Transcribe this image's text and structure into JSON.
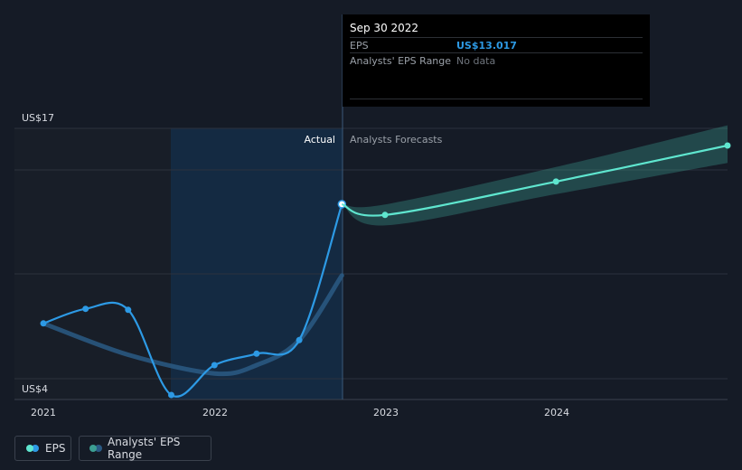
{
  "chart_data": {
    "type": "line",
    "x_ticks": [
      "2021",
      "2022",
      "2023",
      "2024"
    ],
    "y_labels": [
      "US$17",
      "US$4"
    ],
    "ylim": [
      4,
      17
    ],
    "series": [
      {
        "name": "EPS",
        "kind": "actual",
        "color": "#2d9ae5",
        "points": [
          {
            "x": "2021-01-01",
            "y": 7.3
          },
          {
            "x": "2021-04-01",
            "y": 8.0
          },
          {
            "x": "2021-07-01",
            "y": 7.95
          },
          {
            "x": "2021-10-01",
            "y": 3.87
          },
          {
            "x": "2022-01-01",
            "y": 5.3
          },
          {
            "x": "2022-04-01",
            "y": 5.85
          },
          {
            "x": "2022-07-01",
            "y": 6.5
          },
          {
            "x": "2022-09-30",
            "y": 13.017
          }
        ]
      },
      {
        "name": "EPS",
        "kind": "forecast",
        "color": "#5fe6cf",
        "points": [
          {
            "x": "2022-09-30",
            "y": 13.017
          },
          {
            "x": "2022-12-31",
            "y": 12.5
          },
          {
            "x": "2023-12-31",
            "y": 14.1
          },
          {
            "x": "2024-12-31",
            "y": 15.83
          }
        ]
      },
      {
        "name": "Analysts' EPS Range",
        "kind": "past_estimate",
        "color": "#2a5a84",
        "points": [
          {
            "x": "2021-01-01",
            "y": 7.3
          },
          {
            "x": "2021-07-01",
            "y": 5.8
          },
          {
            "x": "2022-01-01",
            "y": 4.9
          },
          {
            "x": "2022-04-01",
            "y": 5.3
          },
          {
            "x": "2022-07-01",
            "y": 6.5
          },
          {
            "x": "2022-09-30",
            "y": 9.6
          }
        ]
      },
      {
        "name": "Analysts' EPS Range",
        "kind": "forecast_range",
        "color": "#3c9e92",
        "low": [
          {
            "x": "2022-09-30",
            "y": 13.017
          },
          {
            "x": "2022-12-31",
            "y": 12.0
          },
          {
            "x": "2023-12-31",
            "y": 13.5
          },
          {
            "x": "2024-12-31",
            "y": 15.0
          }
        ],
        "high": [
          {
            "x": "2022-09-30",
            "y": 13.017
          },
          {
            "x": "2022-12-31",
            "y": 13.0
          },
          {
            "x": "2023-12-31",
            "y": 14.8
          },
          {
            "x": "2024-12-31",
            "y": 16.8
          }
        ]
      }
    ],
    "dividers": {
      "past_label": "Actual",
      "future_label": "Analysts Forecasts"
    },
    "grid": true
  },
  "tooltip": {
    "date": "Sep 30 2022",
    "rows": [
      {
        "label": "EPS",
        "value": "US$13.017",
        "value_color": "#2d9ae5"
      },
      {
        "label": "Analysts' EPS Range",
        "value": "No data",
        "value_color": "#6f757d"
      }
    ]
  },
  "legend": {
    "eps": {
      "label": "EPS",
      "colors": [
        "#5fe6cf",
        "#2d9ae5"
      ]
    },
    "range": {
      "label": "Analysts' EPS Range",
      "colors": [
        "#3c9e92",
        "#2a5a84"
      ]
    }
  }
}
